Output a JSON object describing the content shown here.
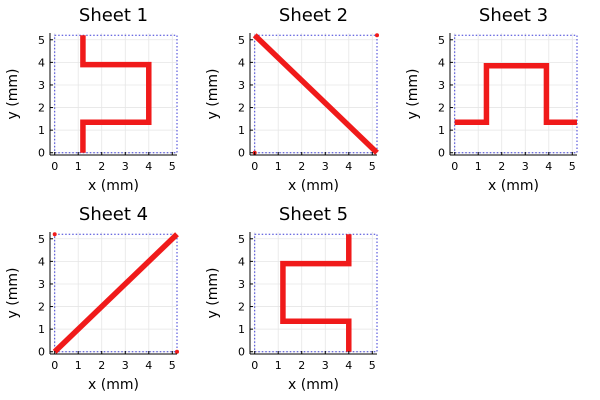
{
  "chart_data": [
    {
      "type": "line",
      "title": "Sheet 1",
      "xlabel": "x (mm)",
      "ylabel": "y (mm)",
      "xlim": [
        -0.2,
        5.2
      ],
      "ylim": [
        -0.1,
        5.3
      ],
      "xticks": [
        "0",
        "1",
        "2",
        "3",
        "4",
        "5"
      ],
      "yticks": [
        "0",
        "1",
        "2",
        "3",
        "4",
        "5"
      ],
      "grid": true,
      "boundary": [
        0,
        5.2,
        0,
        5.2
      ],
      "color": "#f01a1a",
      "series": [
        {
          "x": [
            1.2,
            1.2,
            4.0,
            4.0,
            1.2,
            1.2
          ],
          "y": [
            0,
            1.35,
            1.35,
            3.9,
            3.9,
            5.2
          ]
        }
      ],
      "points": []
    },
    {
      "type": "line",
      "title": "Sheet 2",
      "xlabel": "x (mm)",
      "ylabel": "y (mm)",
      "xlim": [
        -0.2,
        5.2
      ],
      "ylim": [
        -0.1,
        5.3
      ],
      "xticks": [
        "0",
        "1",
        "2",
        "3",
        "4",
        "5"
      ],
      "yticks": [
        "0",
        "1",
        "2",
        "3",
        "4",
        "5"
      ],
      "grid": true,
      "boundary": [
        0,
        5.2,
        0,
        5.2
      ],
      "color": "#f01a1a",
      "series": [
        {
          "x": [
            0,
            5.2
          ],
          "y": [
            5.2,
            0
          ]
        }
      ],
      "points": [
        {
          "x": 0,
          "y": 0
        },
        {
          "x": 5.2,
          "y": 5.2
        }
      ]
    },
    {
      "type": "line",
      "title": "Sheet 3",
      "xlabel": "x (mm)",
      "ylabel": "y (mm)",
      "xlim": [
        -0.2,
        5.2
      ],
      "ylim": [
        -0.1,
        5.3
      ],
      "xticks": [
        "0",
        "1",
        "2",
        "3",
        "4",
        "5"
      ],
      "yticks": [
        "0",
        "1",
        "2",
        "3",
        "4",
        "5"
      ],
      "grid": true,
      "boundary": [
        0,
        5.2,
        0,
        5.2
      ],
      "color": "#f01a1a",
      "series": [
        {
          "x": [
            0,
            1.35,
            1.35,
            3.9,
            3.9,
            5.2
          ],
          "y": [
            1.35,
            1.35,
            3.85,
            3.85,
            1.35,
            1.35
          ]
        }
      ],
      "points": []
    },
    {
      "type": "line",
      "title": "Sheet 4",
      "xlabel": "x (mm)",
      "ylabel": "y (mm)",
      "xlim": [
        -0.2,
        5.2
      ],
      "ylim": [
        -0.1,
        5.3
      ],
      "xticks": [
        "0",
        "1",
        "2",
        "3",
        "4",
        "5"
      ],
      "yticks": [
        "0",
        "1",
        "2",
        "3",
        "4",
        "5"
      ],
      "grid": true,
      "boundary": [
        0,
        5.2,
        0,
        5.2
      ],
      "color": "#f01a1a",
      "series": [
        {
          "x": [
            0,
            5.2
          ],
          "y": [
            0,
            5.2
          ]
        }
      ],
      "points": [
        {
          "x": 0,
          "y": 5.2
        },
        {
          "x": 5.2,
          "y": 0
        }
      ]
    },
    {
      "type": "line",
      "title": "Sheet 5",
      "xlabel": "x (mm)",
      "ylabel": "y (mm)",
      "xlim": [
        -0.2,
        5.2
      ],
      "ylim": [
        -0.1,
        5.3
      ],
      "xticks": [
        "0",
        "1",
        "2",
        "3",
        "4",
        "5"
      ],
      "yticks": [
        "0",
        "1",
        "2",
        "3",
        "4",
        "5"
      ],
      "grid": true,
      "boundary": [
        0,
        5.2,
        0,
        5.2
      ],
      "color": "#f01a1a",
      "series": [
        {
          "x": [
            4.0,
            4.0,
            1.2,
            1.2,
            4.0,
            4.0
          ],
          "y": [
            0,
            1.35,
            1.35,
            3.9,
            3.9,
            5.2
          ]
        }
      ],
      "points": []
    }
  ]
}
